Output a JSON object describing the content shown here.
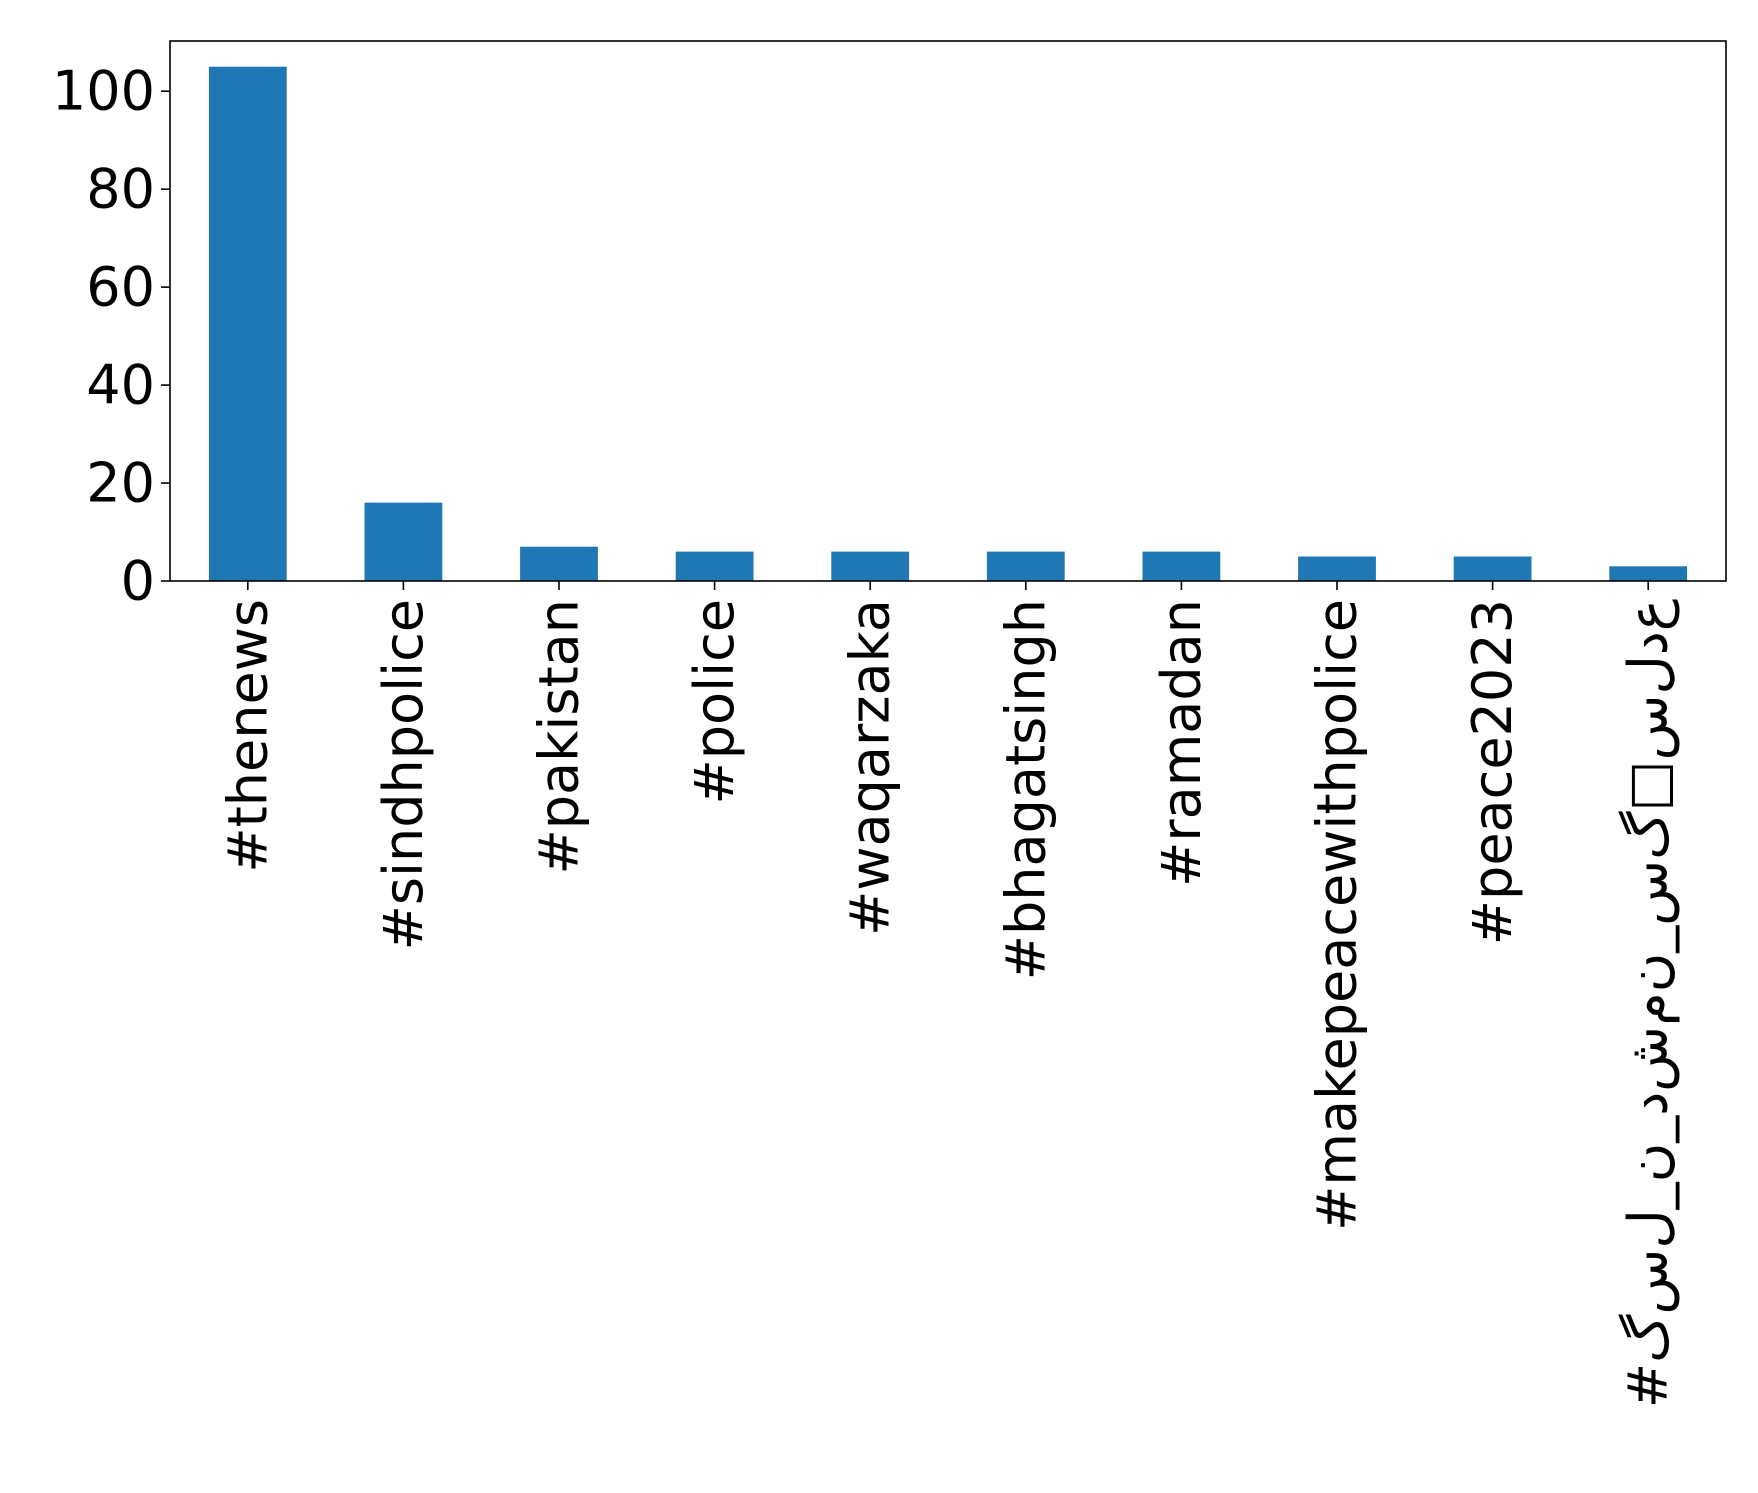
{
  "chart_data": {
    "type": "bar",
    "title": "",
    "xlabel": "",
    "ylabel": "",
    "categories": [
      "#thenews",
      "#sindhpolice",
      "#pakistan",
      "#police",
      "#waqarzaka",
      "#bhagatsingh",
      "#ramadan",
      "#makepeacewithpolice",
      "#peace2023",
      "#ﻉﺩﻝﺱ□ﮒﺱ_ﻥﻡﺵﺩ_ﻥ_ﻝﺱﮒ"
    ],
    "values": [
      105,
      16,
      7,
      6,
      6,
      6,
      6,
      5,
      5,
      3
    ],
    "ylim": [
      0,
      110.25
    ],
    "yticks": [
      0,
      20,
      40,
      60,
      80,
      100
    ],
    "grid": false,
    "legend": "none",
    "bar_color": "#1f77b4"
  }
}
